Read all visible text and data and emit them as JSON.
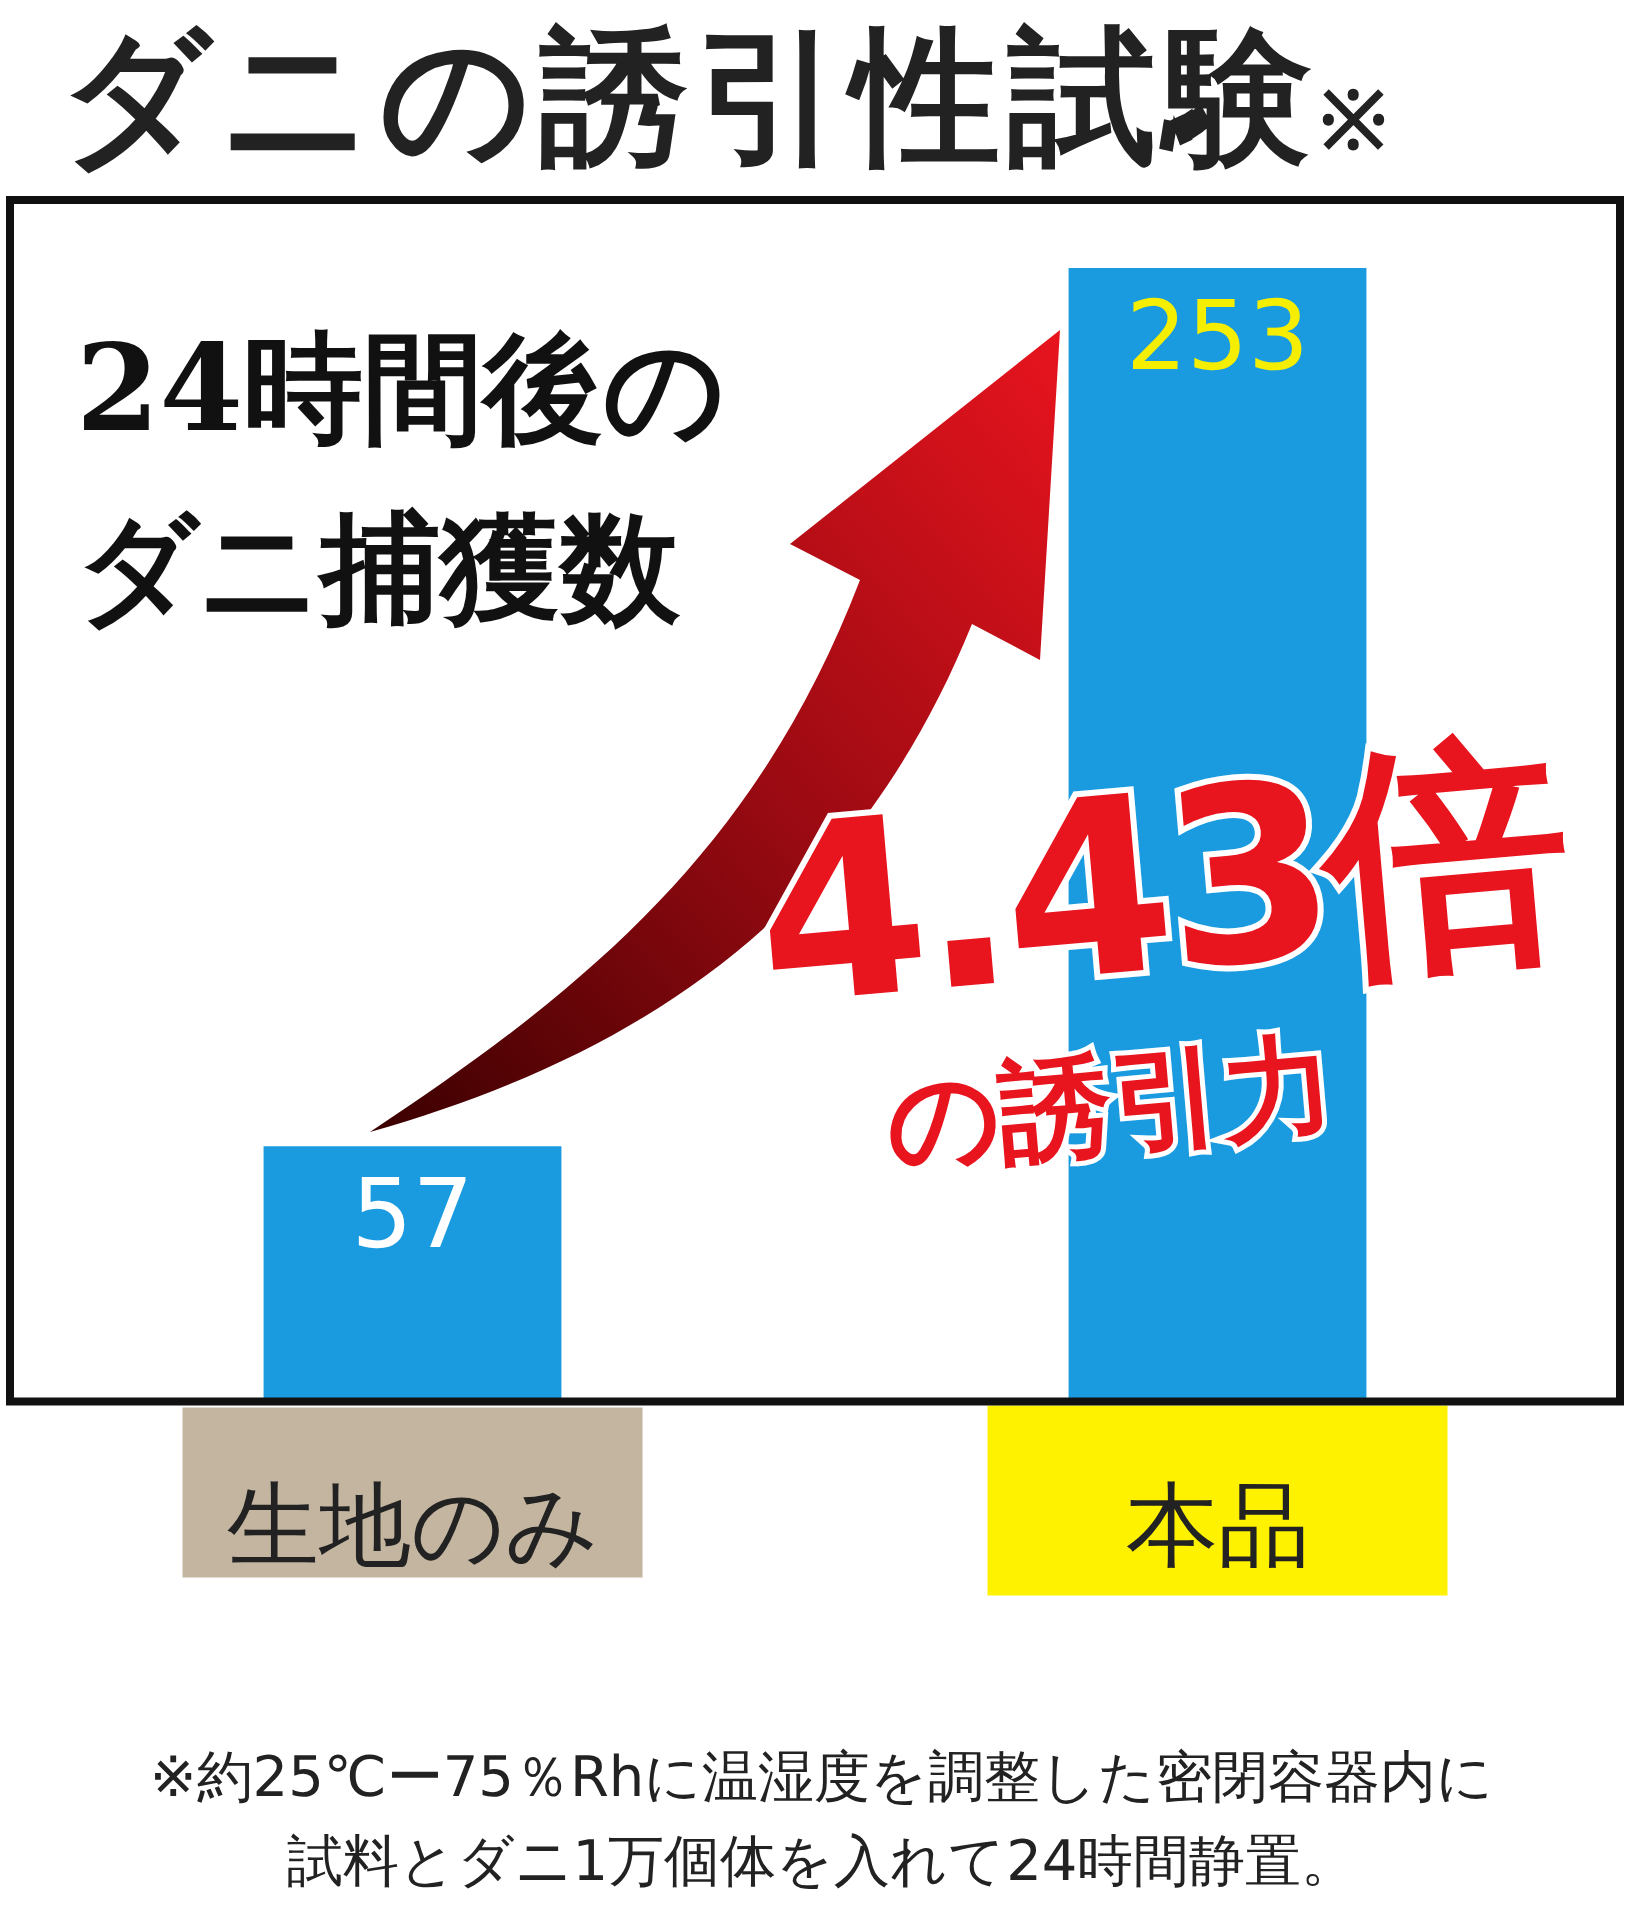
{
  "chart_data": {
    "type": "bar",
    "title": "ダニの誘引性試験※",
    "categories": [
      "生地のみ",
      "本品"
    ],
    "values": [
      57,
      253
    ],
    "colors": [
      "#1a9be0",
      "#1a9be0"
    ],
    "data_labels": true,
    "grid": false,
    "legend": false,
    "annotations": [
      "24時間後のダニ捕獲数",
      "4.43倍",
      "の誘引力",
      "※約25℃ー75％Rhに温湿度を調整した密閉容器内に試料とダニ1万個体を入れて24時間静置。"
    ]
  }
}
